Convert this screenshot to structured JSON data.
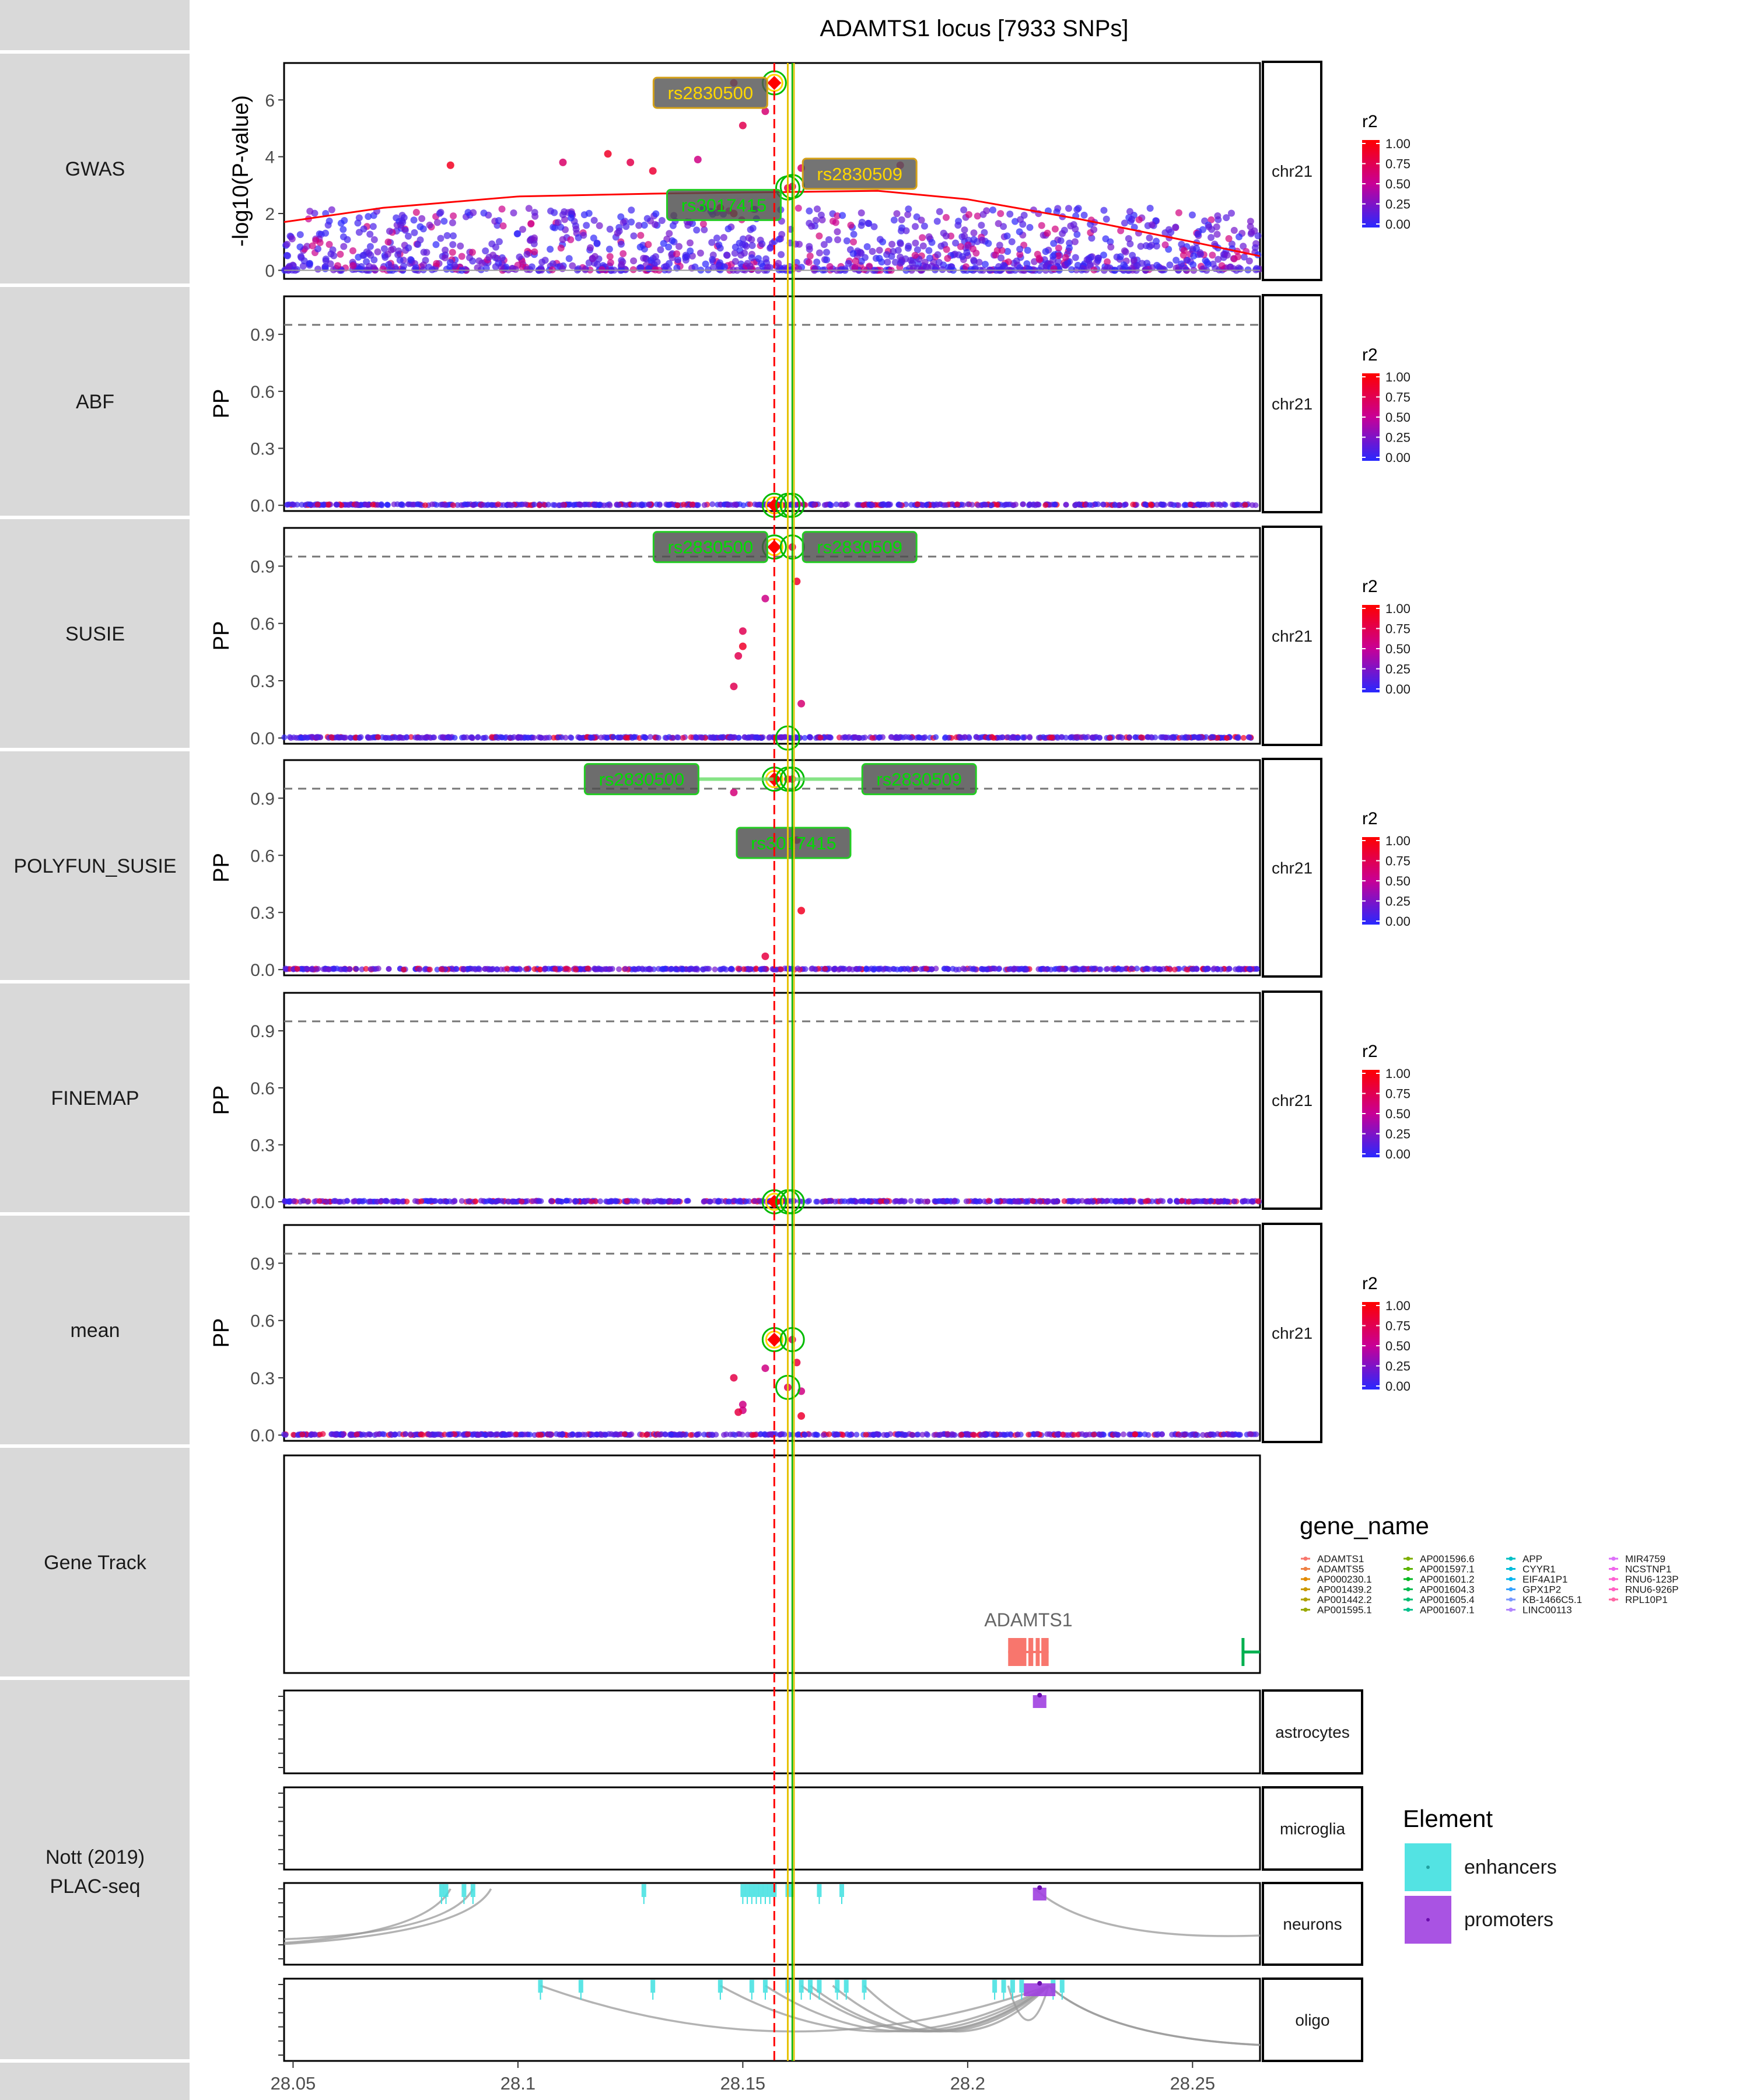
{
  "title": "ADAMTS1 locus [7933 SNPs]",
  "colors": {
    "strip": "#d9d9d9",
    "lead_line": "#ff0000",
    "consensus_line": "#ffd700",
    "consensus_line2": "#00aa00",
    "label_fill_gwas": "#555555",
    "label_text_gwas": "#ffd700",
    "label_fill_fm": "#4d4d4d",
    "label_text_fm": "#00dd00",
    "gene_adamts1": "#f8766d",
    "enhancer": "#40e0e0",
    "promoter": "#a040e0",
    "loess": "#ff0000"
  },
  "chart_data": {
    "type": "scatter",
    "x_axis": {
      "ticks": [
        28.05,
        28.1,
        28.15,
        28.2,
        28.25
      ],
      "lim": [
        28.048,
        28.265
      ]
    },
    "lead_snp_x": 28.157,
    "consensus_snp_x": [
      28.16,
      28.161
    ],
    "tracks": [
      {
        "name": "GWAS",
        "facet": "chr21",
        "ylabel": "-log10(P-value)",
        "ylim": [
          -0.3,
          7.3
        ],
        "ticks": [
          0,
          2,
          4,
          6
        ],
        "loess": [
          [
            28.048,
            1.7
          ],
          [
            28.07,
            2.2
          ],
          [
            28.1,
            2.6
          ],
          [
            28.13,
            2.7
          ],
          [
            28.157,
            2.75
          ],
          [
            28.18,
            2.8
          ],
          [
            28.2,
            2.5
          ],
          [
            28.225,
            1.8
          ],
          [
            28.25,
            1.0
          ],
          [
            28.265,
            0.5
          ]
        ],
        "highlights": [
          [
            28.157,
            6.6
          ],
          [
            28.16,
            2.9
          ],
          [
            28.161,
            2.95
          ]
        ],
        "peaks": [
          [
            28.157,
            6.6
          ],
          [
            28.15,
            5.1
          ],
          [
            28.148,
            6.6
          ],
          [
            28.155,
            5.6
          ],
          [
            28.12,
            4.1
          ],
          [
            28.13,
            3.5
          ],
          [
            28.125,
            3.8
          ],
          [
            28.14,
            3.9
          ],
          [
            28.163,
            3.6
          ],
          [
            28.185,
            3.7
          ],
          [
            28.085,
            3.7
          ],
          [
            28.11,
            3.8
          ],
          [
            28.16,
            2.9
          ],
          [
            28.161,
            2.95
          ],
          [
            28.145,
            2.2
          ],
          [
            28.148,
            2.0
          ]
        ],
        "labels": [
          {
            "text": "rs2830500",
            "x": 28.157,
            "y": 6.6,
            "style": "gwas",
            "side": "left",
            "dy": -0.35
          },
          {
            "text": "rs2830509",
            "x": 28.161,
            "y": 2.95,
            "style": "gwas",
            "side": "right",
            "dy": 0.45
          },
          {
            "text": "rs3017415",
            "x": 28.16,
            "y": 2.9,
            "style": "fm",
            "side": "left",
            "dy": -0.6
          }
        ],
        "threshold": null
      },
      {
        "name": "ABF",
        "facet": "chr21",
        "ylabel": "PP",
        "ylim": [
          -0.03,
          1.1
        ],
        "ticks": [
          0,
          0.3,
          0.6,
          0.9
        ],
        "tick_labels": [
          "0.0",
          "0.3",
          "0.6",
          "0.9"
        ],
        "threshold": 0.95,
        "highlights": [
          [
            28.157,
            0.0
          ],
          [
            28.16,
            0.0
          ],
          [
            28.161,
            0.0
          ]
        ],
        "peaks": [],
        "labels": []
      },
      {
        "name": "SUSIE",
        "facet": "chr21",
        "ylabel": "PP",
        "ylim": [
          -0.03,
          1.1
        ],
        "ticks": [
          0,
          0.3,
          0.6,
          0.9
        ],
        "tick_labels": [
          "0.0",
          "0.3",
          "0.6",
          "0.9"
        ],
        "threshold": 0.95,
        "highlights": [
          [
            28.157,
            1.0
          ],
          [
            28.161,
            1.0
          ],
          [
            28.16,
            0.0
          ]
        ],
        "peaks": [
          [
            28.157,
            1.0
          ],
          [
            28.161,
            1.0
          ],
          [
            28.155,
            0.73
          ],
          [
            28.162,
            0.82
          ],
          [
            28.15,
            0.56
          ],
          [
            28.15,
            0.48
          ],
          [
            28.149,
            0.43
          ],
          [
            28.148,
            0.27
          ],
          [
            28.163,
            0.18
          ]
        ],
        "labels": [
          {
            "text": "rs2830500",
            "x": 28.157,
            "y": 1.0,
            "style": "fm",
            "side": "left",
            "dy": 0.0
          },
          {
            "text": "rs2830509",
            "x": 28.161,
            "y": 1.0,
            "style": "fm",
            "side": "right",
            "dy": 0.0
          }
        ]
      },
      {
        "name": "POLYFUN_SUSIE",
        "facet": "chr21",
        "ylabel": "PP",
        "ylim": [
          -0.03,
          1.1
        ],
        "ticks": [
          0,
          0.3,
          0.6,
          0.9
        ],
        "tick_labels": [
          "0.0",
          "0.3",
          "0.6",
          "0.9"
        ],
        "threshold": 0.95,
        "highlights": [
          [
            28.157,
            1.0
          ],
          [
            28.16,
            1.0
          ],
          [
            28.161,
            1.0
          ]
        ],
        "peaks": [
          [
            28.157,
            1.0
          ],
          [
            28.16,
            1.0
          ],
          [
            28.161,
            1.0
          ],
          [
            28.148,
            0.93
          ],
          [
            28.162,
            0.68
          ],
          [
            28.163,
            0.31
          ],
          [
            28.155,
            0.07
          ]
        ],
        "labels": [
          {
            "text": "rs2830500",
            "x": 28.157,
            "y": 1.0,
            "style": "fm",
            "side": "farleft",
            "dy": 0.0
          },
          {
            "text": "rs2830509",
            "x": 28.161,
            "y": 1.0,
            "style": "fm",
            "side": "farright",
            "dy": 0.0
          },
          {
            "text": "rs3017415",
            "x": 28.16,
            "y": 1.0,
            "style": "fm",
            "side": "below",
            "dy": -0.2
          }
        ]
      },
      {
        "name": "FINEMAP",
        "facet": "chr21",
        "ylabel": "PP",
        "ylim": [
          -0.03,
          1.1
        ],
        "ticks": [
          0,
          0.3,
          0.6,
          0.9
        ],
        "tick_labels": [
          "0.0",
          "0.3",
          "0.6",
          "0.9"
        ],
        "threshold": 0.95,
        "highlights": [
          [
            28.157,
            0.0
          ],
          [
            28.16,
            0.0
          ],
          [
            28.161,
            0.0
          ]
        ],
        "peaks": [],
        "labels": []
      },
      {
        "name": "mean",
        "facet": "chr21",
        "ylabel": "PP",
        "ylim": [
          -0.03,
          1.1
        ],
        "ticks": [
          0,
          0.3,
          0.6,
          0.9
        ],
        "tick_labels": [
          "0.0",
          "0.3",
          "0.6",
          "0.9"
        ],
        "threshold": 0.95,
        "highlights": [
          [
            28.157,
            0.5
          ],
          [
            28.161,
            0.5
          ],
          [
            28.16,
            0.25
          ]
        ],
        "peaks": [
          [
            28.157,
            0.5
          ],
          [
            28.161,
            0.5
          ],
          [
            28.16,
            0.25
          ],
          [
            28.148,
            0.3
          ],
          [
            28.162,
            0.38
          ],
          [
            28.163,
            0.23
          ],
          [
            28.15,
            0.16
          ],
          [
            28.15,
            0.13
          ],
          [
            28.149,
            0.12
          ],
          [
            28.155,
            0.35
          ],
          [
            28.163,
            0.1
          ]
        ],
        "labels": []
      }
    ],
    "r2_legend": {
      "title": "r2",
      "ticks": [
        "1.00",
        "0.75",
        "0.50",
        "0.25",
        "0.00"
      ]
    },
    "gene_track": {
      "name": "Gene Track",
      "genes": [
        {
          "name": "ADAMTS1",
          "start": 28.209,
          "end": 28.218,
          "label": "ADAMTS1"
        }
      ],
      "edge_gene": {
        "x": 28.262
      },
      "legend_title": "gene_name",
      "legend_columns": [
        [
          "ADAMTS1",
          "ADAMTS5",
          "AP000230.1",
          "AP001439.2",
          "AP001442.2",
          "AP001595.1"
        ],
        [
          "AP001596.6",
          "AP001597.1",
          "AP001601.2",
          "AP001604.3",
          "AP001605.4",
          "AP001607.1"
        ],
        [
          "APP",
          "CYYR1",
          "EIF4A1P1",
          "GPX1P2",
          "KB-1466C5.1",
          "LINC00113"
        ],
        [
          "MIR4759",
          "NCSTNP1",
          "RNU6-123P",
          "RNU6-926P",
          "RPL10P1"
        ]
      ],
      "legend_colors": [
        [
          "#f8766d",
          "#ee8044",
          "#e18a00",
          "#c99800",
          "#b0a000",
          "#99a800"
        ],
        [
          "#7cae00",
          "#5bb300",
          "#00b81f",
          "#00bb4e",
          "#00be70",
          "#00c08b"
        ],
        [
          "#00bfc4",
          "#00bbda",
          "#00b4ef",
          "#35a2ff",
          "#7997ff",
          "#b186ff"
        ],
        [
          "#dc71fa",
          "#ef67eb",
          "#fd61d1",
          "#ff61c3",
          "#ff67a4"
        ]
      ]
    },
    "nott": {
      "strip_label_lines": [
        "Nott (2019)",
        "PLAC-seq"
      ],
      "panels": [
        {
          "name": "astrocytes",
          "promoters": [
            [
              28.2145,
              28.2175
            ]
          ],
          "enhancers": [],
          "loops": []
        },
        {
          "name": "microglia",
          "promoters": [],
          "enhancers": [],
          "loops": []
        },
        {
          "name": "neurons",
          "promoters": [
            [
              28.2145,
              28.2175
            ]
          ],
          "enhancers": [
            28.083,
            28.084,
            28.088,
            28.09,
            28.128,
            28.15,
            28.151,
            28.152,
            28.153,
            28.154,
            28.155,
            28.156,
            28.157,
            28.16,
            28.161,
            28.167,
            28.172
          ],
          "loops": [
            [
              28.048,
              28.085
            ],
            [
              28.048,
              28.09
            ],
            [
              28.048,
              28.094
            ],
            [
              28.215,
              28.265
            ]
          ]
        },
        {
          "name": "oligo",
          "promoters": [
            [
              28.2125,
              28.2195
            ]
          ],
          "enhancers": [
            28.105,
            28.114,
            28.13,
            28.145,
            28.152,
            28.155,
            28.16,
            28.163,
            28.165,
            28.167,
            28.171,
            28.173,
            28.177,
            28.206,
            28.208,
            28.21,
            28.212,
            28.219,
            28.221
          ],
          "loops": [
            [
              28.105,
              28.218
            ],
            [
              28.145,
              28.218
            ],
            [
              28.155,
              28.218
            ],
            [
              28.163,
              28.218
            ],
            [
              28.165,
              28.218
            ],
            [
              28.17,
              28.218
            ],
            [
              28.177,
              28.218
            ],
            [
              28.209,
              28.218
            ],
            [
              28.218,
              28.265
            ],
            [
              28.218,
              28.262
            ]
          ]
        }
      ],
      "legend_title": "Element",
      "legend_items": [
        "enhancers",
        "promoters"
      ]
    }
  }
}
